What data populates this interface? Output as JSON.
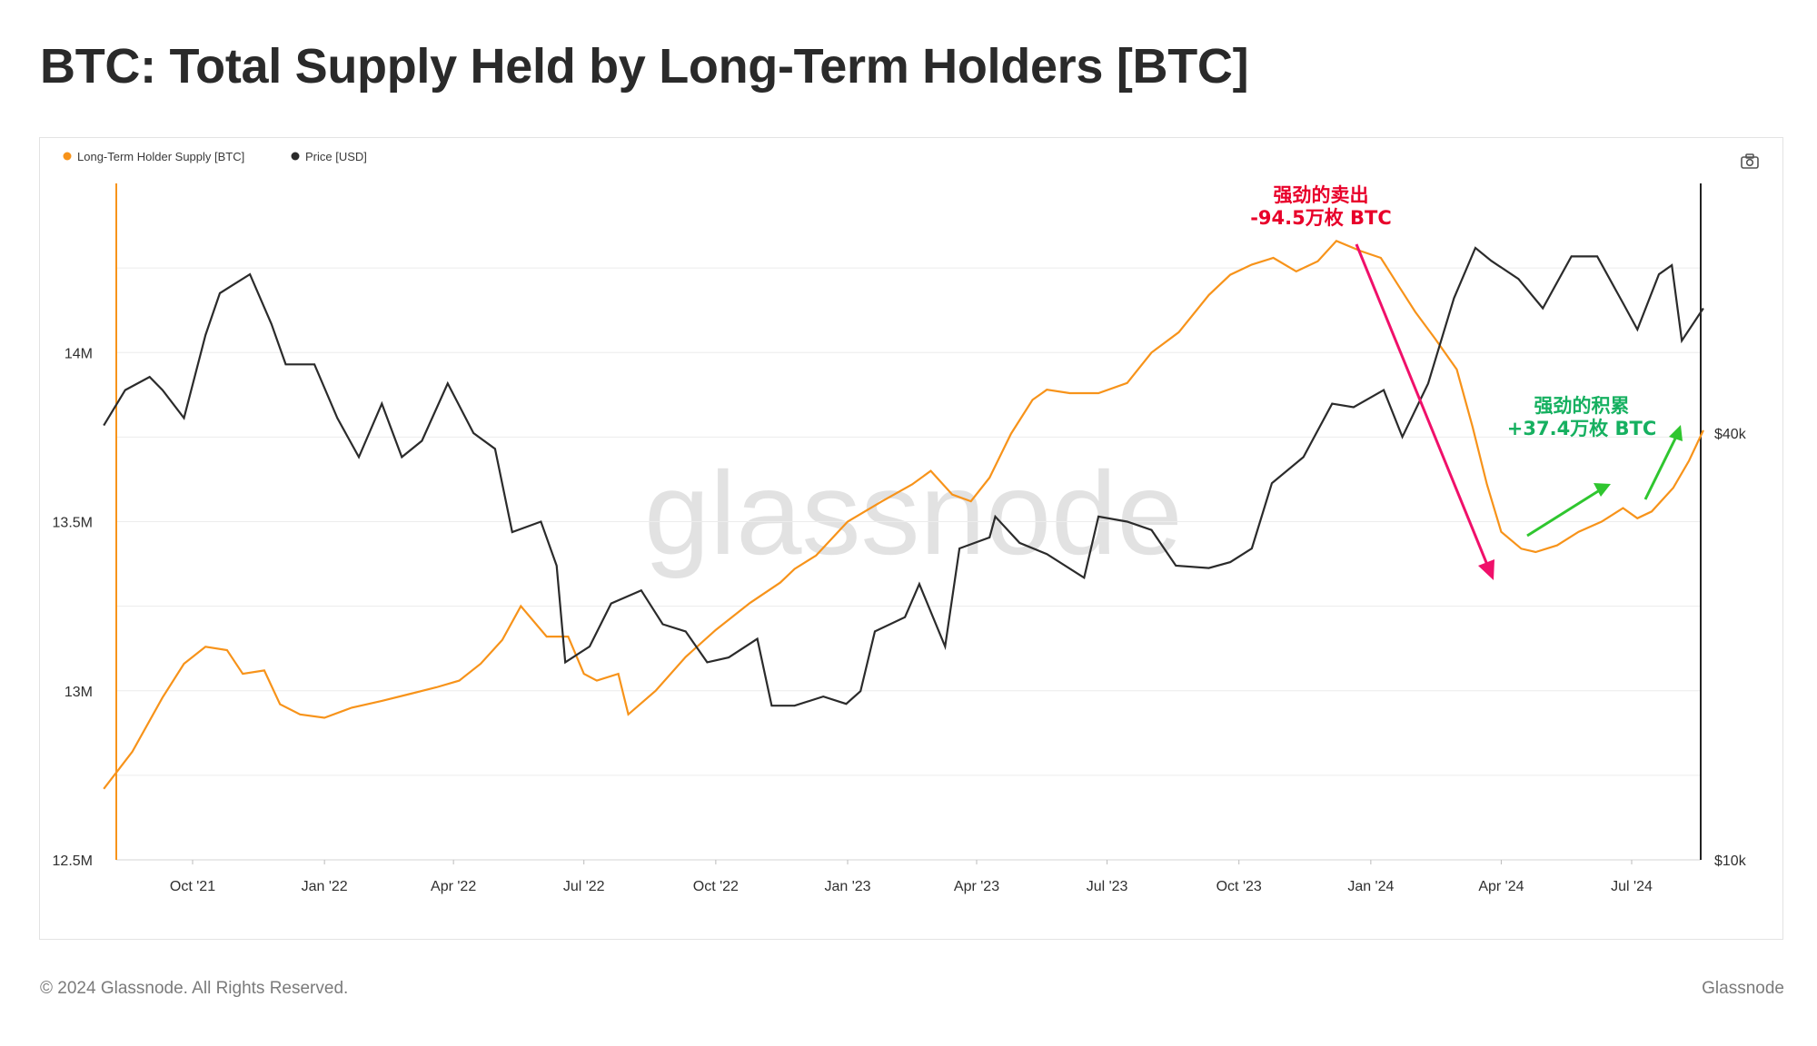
{
  "title": "BTC: Total Supply Held by Long-Term Holders [BTC]",
  "footer": {
    "copyright": "© 2024 Glassnode. All Rights Reserved.",
    "brand": "Glassnode"
  },
  "watermark": "glassnode",
  "toolbar": {
    "camera_icon": "camera-icon"
  },
  "colors": {
    "lth_supply": "#f7931a",
    "price": "#2b2b2b",
    "sell_annotation": "#e8002a",
    "sell_arrow": "#f0106a",
    "accumulate_annotation": "#16b060",
    "accumulate_arrow": "#2fc62f",
    "grid": "#ececec",
    "left_axis": "#f7931a",
    "right_axis": "#222222"
  },
  "annotations": {
    "sell": {
      "line1": "强劲的卖出",
      "line2": "-94.5万枚 BTC"
    },
    "accumulate": {
      "line1": "强劲的积累",
      "line2": "+37.4万枚 BTC"
    }
  },
  "chart_data": {
    "type": "line",
    "legend": [
      {
        "name": "Long-Term Holder Supply [BTC]",
        "color": "#f7931a"
      },
      {
        "name": "Price [USD]",
        "color": "#2b2b2b"
      }
    ],
    "legend_position": "top-left",
    "grid": true,
    "x_axis": {
      "type": "date",
      "range": [
        "2021-07-28",
        "2024-08-28"
      ],
      "ticks": [
        {
          "date": "2021-10-01",
          "label": "Oct '21"
        },
        {
          "date": "2022-01-01",
          "label": "Jan '22"
        },
        {
          "date": "2022-04-01",
          "label": "Apr '22"
        },
        {
          "date": "2022-07-01",
          "label": "Jul '22"
        },
        {
          "date": "2022-10-01",
          "label": "Oct '22"
        },
        {
          "date": "2023-01-01",
          "label": "Jan '23"
        },
        {
          "date": "2023-04-01",
          "label": "Apr '23"
        },
        {
          "date": "2023-07-01",
          "label": "Jul '23"
        },
        {
          "date": "2023-10-01",
          "label": "Oct '23"
        },
        {
          "date": "2024-01-01",
          "label": "Jan '24"
        },
        {
          "date": "2024-04-01",
          "label": "Apr '24"
        },
        {
          "date": "2024-07-01",
          "label": "Jul '24"
        }
      ]
    },
    "y_left": {
      "range": [
        12500000,
        14500000
      ],
      "ticks": [
        {
          "value": 12500000,
          "label": "12.5M"
        },
        {
          "value": 13000000,
          "label": "13M"
        },
        {
          "value": 13500000,
          "label": "13.5M"
        },
        {
          "value": 14000000,
          "label": "14M"
        }
      ]
    },
    "y_right": {
      "scale": "log",
      "range": [
        10000,
        90000
      ],
      "ticks": [
        {
          "value": 10000,
          "label": "$10k"
        },
        {
          "value": 40000,
          "label": "$40k"
        }
      ]
    },
    "series": [
      {
        "name": "Long-Term Holder Supply [BTC]",
        "axis": "left",
        "points": [
          [
            "2021-07-31",
            12710000
          ],
          [
            "2021-08-20",
            12820000
          ],
          [
            "2021-09-10",
            12980000
          ],
          [
            "2021-09-25",
            13080000
          ],
          [
            "2021-10-10",
            13130000
          ],
          [
            "2021-10-25",
            13120000
          ],
          [
            "2021-11-05",
            13050000
          ],
          [
            "2021-11-20",
            13060000
          ],
          [
            "2021-12-01",
            12960000
          ],
          [
            "2021-12-15",
            12930000
          ],
          [
            "2022-01-01",
            12920000
          ],
          [
            "2022-01-20",
            12950000
          ],
          [
            "2022-02-10",
            12970000
          ],
          [
            "2022-03-01",
            12990000
          ],
          [
            "2022-03-20",
            13010000
          ],
          [
            "2022-04-05",
            13030000
          ],
          [
            "2022-04-20",
            13080000
          ],
          [
            "2022-05-05",
            13150000
          ],
          [
            "2022-05-18",
            13250000
          ],
          [
            "2022-06-05",
            13160000
          ],
          [
            "2022-06-20",
            13160000
          ],
          [
            "2022-07-01",
            13050000
          ],
          [
            "2022-07-10",
            13030000
          ],
          [
            "2022-07-25",
            13050000
          ],
          [
            "2022-08-01",
            12930000
          ],
          [
            "2022-08-20",
            13000000
          ],
          [
            "2022-09-10",
            13100000
          ],
          [
            "2022-10-01",
            13180000
          ],
          [
            "2022-10-25",
            13260000
          ],
          [
            "2022-11-15",
            13320000
          ],
          [
            "2022-11-25",
            13360000
          ],
          [
            "2022-12-10",
            13400000
          ],
          [
            "2023-01-01",
            13500000
          ],
          [
            "2023-01-25",
            13560000
          ],
          [
            "2023-02-15",
            13610000
          ],
          [
            "2023-02-28",
            13650000
          ],
          [
            "2023-03-15",
            13580000
          ],
          [
            "2023-03-28",
            13560000
          ],
          [
            "2023-04-10",
            13630000
          ],
          [
            "2023-04-25",
            13760000
          ],
          [
            "2023-05-10",
            13860000
          ],
          [
            "2023-05-20",
            13890000
          ],
          [
            "2023-06-05",
            13880000
          ],
          [
            "2023-06-25",
            13880000
          ],
          [
            "2023-07-15",
            13910000
          ],
          [
            "2023-08-01",
            14000000
          ],
          [
            "2023-08-20",
            14060000
          ],
          [
            "2023-09-10",
            14170000
          ],
          [
            "2023-09-25",
            14230000
          ],
          [
            "2023-10-10",
            14260000
          ],
          [
            "2023-10-25",
            14280000
          ],
          [
            "2023-11-10",
            14240000
          ],
          [
            "2023-11-25",
            14270000
          ],
          [
            "2023-12-08",
            14330000
          ],
          [
            "2023-12-25",
            14300000
          ],
          [
            "2024-01-08",
            14280000
          ],
          [
            "2024-01-20",
            14200000
          ],
          [
            "2024-02-01",
            14120000
          ],
          [
            "2024-02-15",
            14040000
          ],
          [
            "2024-03-01",
            13950000
          ],
          [
            "2024-03-12",
            13780000
          ],
          [
            "2024-03-22",
            13610000
          ],
          [
            "2024-04-01",
            13470000
          ],
          [
            "2024-04-15",
            13420000
          ],
          [
            "2024-04-25",
            13410000
          ],
          [
            "2024-05-10",
            13430000
          ],
          [
            "2024-05-25",
            13470000
          ],
          [
            "2024-06-10",
            13500000
          ],
          [
            "2024-06-25",
            13540000
          ],
          [
            "2024-07-05",
            13510000
          ],
          [
            "2024-07-15",
            13530000
          ],
          [
            "2024-07-30",
            13600000
          ],
          [
            "2024-08-10",
            13680000
          ],
          [
            "2024-08-20",
            13770000
          ]
        ]
      },
      {
        "name": "Price [USD]",
        "axis": "right",
        "points": [
          [
            "2021-07-31",
            41000
          ],
          [
            "2021-08-15",
            46000
          ],
          [
            "2021-09-01",
            48000
          ],
          [
            "2021-09-10",
            46000
          ],
          [
            "2021-09-25",
            42000
          ],
          [
            "2021-10-10",
            55000
          ],
          [
            "2021-10-20",
            63000
          ],
          [
            "2021-11-10",
            67000
          ],
          [
            "2021-11-25",
            57000
          ],
          [
            "2021-12-05",
            50000
          ],
          [
            "2021-12-25",
            50000
          ],
          [
            "2022-01-10",
            42000
          ],
          [
            "2022-01-25",
            37000
          ],
          [
            "2022-02-10",
            44000
          ],
          [
            "2022-02-24",
            37000
          ],
          [
            "2022-03-10",
            39000
          ],
          [
            "2022-03-28",
            47000
          ],
          [
            "2022-04-15",
            40000
          ],
          [
            "2022-04-30",
            38000
          ],
          [
            "2022-05-12",
            29000
          ],
          [
            "2022-06-01",
            30000
          ],
          [
            "2022-06-12",
            26000
          ],
          [
            "2022-06-18",
            19000
          ],
          [
            "2022-07-05",
            20000
          ],
          [
            "2022-07-20",
            23000
          ],
          [
            "2022-08-10",
            24000
          ],
          [
            "2022-08-25",
            21500
          ],
          [
            "2022-09-10",
            21000
          ],
          [
            "2022-09-25",
            19000
          ],
          [
            "2022-10-10",
            19300
          ],
          [
            "2022-10-30",
            20500
          ],
          [
            "2022-11-09",
            16500
          ],
          [
            "2022-11-25",
            16500
          ],
          [
            "2022-12-15",
            17000
          ],
          [
            "2022-12-31",
            16600
          ],
          [
            "2023-01-10",
            17300
          ],
          [
            "2023-01-20",
            21000
          ],
          [
            "2023-02-10",
            22000
          ],
          [
            "2023-02-20",
            24500
          ],
          [
            "2023-03-10",
            20000
          ],
          [
            "2023-03-20",
            27500
          ],
          [
            "2023-04-10",
            28500
          ],
          [
            "2023-04-14",
            30500
          ],
          [
            "2023-05-01",
            28000
          ],
          [
            "2023-05-20",
            27000
          ],
          [
            "2023-06-15",
            25000
          ],
          [
            "2023-06-25",
            30500
          ],
          [
            "2023-07-15",
            30000
          ],
          [
            "2023-08-01",
            29200
          ],
          [
            "2023-08-18",
            26000
          ],
          [
            "2023-09-10",
            25800
          ],
          [
            "2023-09-25",
            26300
          ],
          [
            "2023-10-10",
            27500
          ],
          [
            "2023-10-24",
            34000
          ],
          [
            "2023-11-15",
            37000
          ],
          [
            "2023-12-05",
            44000
          ],
          [
            "2023-12-20",
            43500
          ],
          [
            "2024-01-10",
            46000
          ],
          [
            "2024-01-23",
            39500
          ],
          [
            "2024-02-10",
            47000
          ],
          [
            "2024-02-28",
            62000
          ],
          [
            "2024-03-14",
            73000
          ],
          [
            "2024-03-25",
            70000
          ],
          [
            "2024-04-13",
            66000
          ],
          [
            "2024-04-30",
            60000
          ],
          [
            "2024-05-20",
            71000
          ],
          [
            "2024-06-07",
            71000
          ],
          [
            "2024-06-25",
            61000
          ],
          [
            "2024-07-05",
            56000
          ],
          [
            "2024-07-20",
            67000
          ],
          [
            "2024-07-29",
            69000
          ],
          [
            "2024-08-05",
            54000
          ],
          [
            "2024-08-20",
            60000
          ]
        ]
      }
    ]
  }
}
